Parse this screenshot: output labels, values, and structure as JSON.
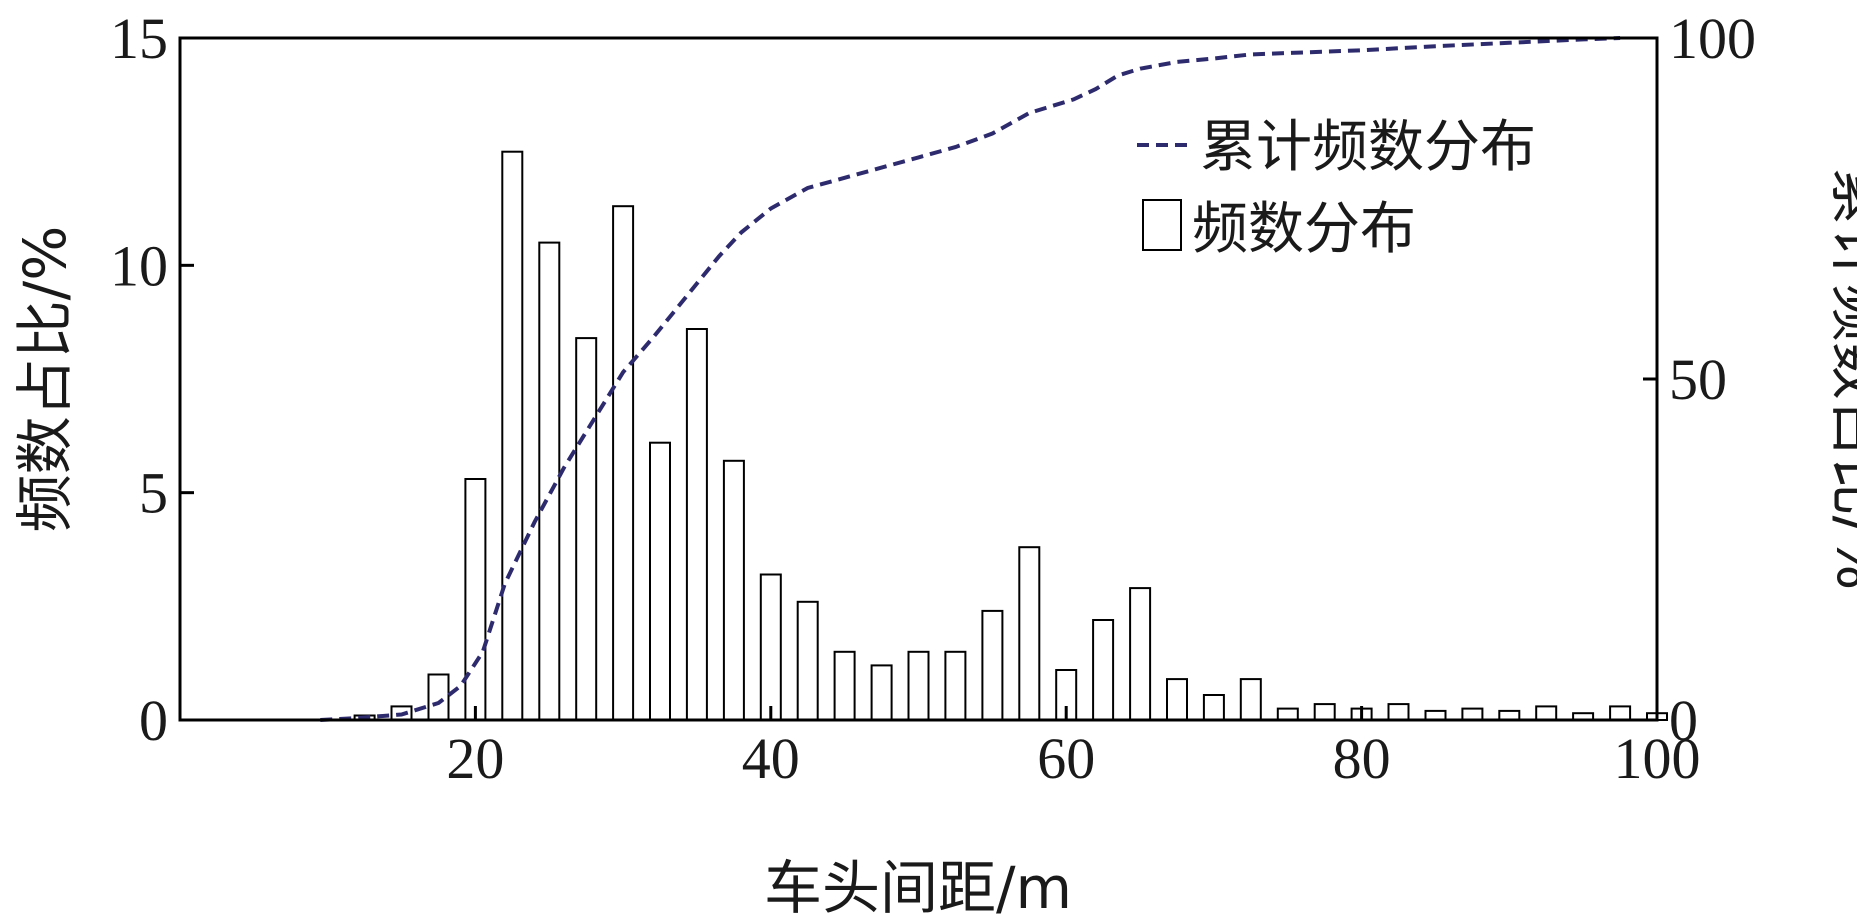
{
  "chart_data": {
    "type": "bar",
    "xlabel": "车头间距/m",
    "ylabel_left": "频数占比/%",
    "ylabel_right": "累计频数占比/%",
    "xlim": [
      0,
      100
    ],
    "ylim_left": [
      0,
      15
    ],
    "ylim_right": [
      0,
      100
    ],
    "x_ticks": [
      20,
      40,
      60,
      80,
      100
    ],
    "y_left_ticks": [
      0,
      5,
      10,
      15
    ],
    "y_right_ticks": [
      0,
      50,
      100
    ],
    "legend_position": "top-right",
    "grid": false,
    "series": [
      {
        "name": "频数分布",
        "kind": "bar",
        "color": "#ffffff",
        "edge_color": "#000000",
        "x": [
          12.5,
          15,
          17.5,
          20,
          22.5,
          25,
          27.5,
          30,
          32.5,
          35,
          37.5,
          40,
          42.5,
          45,
          47.5,
          50,
          52.5,
          55,
          57.5,
          60,
          62.5,
          65,
          67.5,
          70,
          72.5,
          75,
          77.5,
          80,
          82.5,
          85,
          87.5,
          90,
          92.5,
          95,
          97.5,
          100
        ],
        "values": [
          0.1,
          0.3,
          1.0,
          5.3,
          12.5,
          10.5,
          8.4,
          11.3,
          6.1,
          8.6,
          5.7,
          3.2,
          2.6,
          1.5,
          1.2,
          1.5,
          1.5,
          2.4,
          3.8,
          1.1,
          2.2,
          2.9,
          0.9,
          0.55,
          0.9,
          0.25,
          0.35,
          0.25,
          0.35,
          0.2,
          0.25,
          0.2,
          0.3,
          0.15,
          0.3,
          0.15
        ]
      },
      {
        "name": "累计频数分布",
        "kind": "line",
        "axis": "right",
        "color": "#2e2a6e",
        "style": "dashed",
        "x": [
          9.5,
          12,
          15,
          17.5,
          19,
          20.5,
          22,
          24,
          26,
          28,
          30,
          32,
          33.5,
          35,
          36.5,
          38,
          40,
          42.5,
          45,
          47.5,
          50,
          52.5,
          55,
          57.5,
          59,
          60.5,
          62,
          63.5,
          65,
          67.5,
          70,
          72.5,
          75,
          80,
          85,
          90,
          95,
          97.5
        ],
        "values": [
          0,
          0.3,
          0.8,
          2.5,
          5,
          10,
          20,
          29,
          37,
          44,
          51,
          56,
          60,
          64,
          68,
          71.5,
          75,
          78,
          79.5,
          81,
          82.5,
          84,
          86,
          89,
          90,
          91,
          92.5,
          94.5,
          95.5,
          96.5,
          97,
          97.6,
          97.8,
          98.2,
          98.8,
          99.3,
          99.8,
          100
        ]
      }
    ]
  }
}
